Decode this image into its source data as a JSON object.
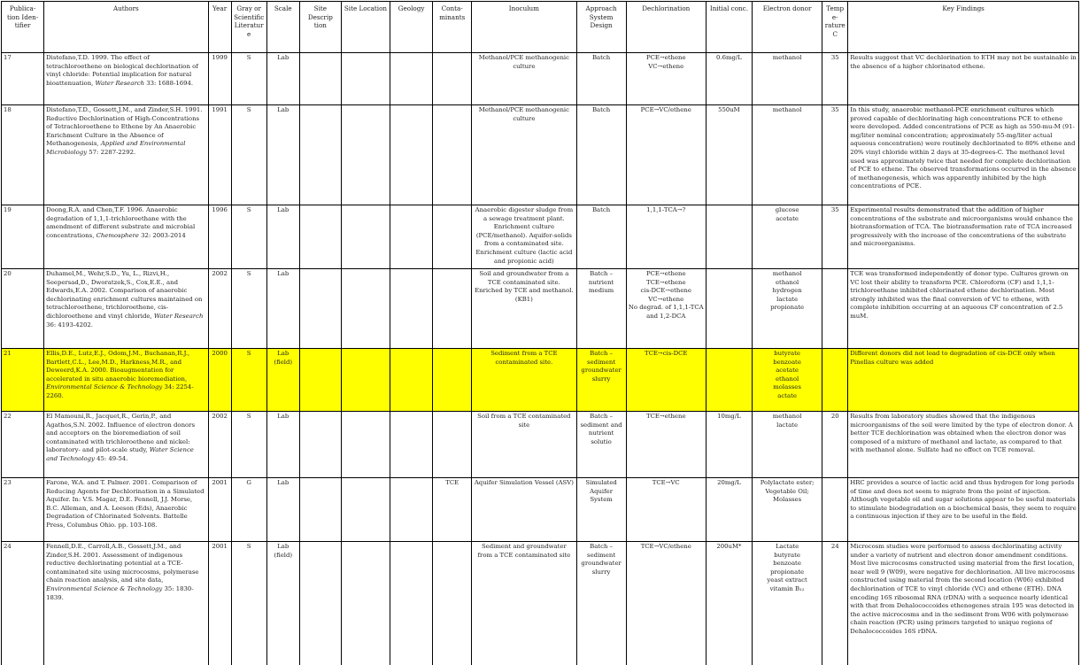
{
  "highlight_color": "#ffff00",
  "headers": [
    "Publica-tion Iden-tifier",
    "Authors",
    "Year",
    "Gray or Scientific Literature",
    "Scale",
    "Site Descrip tion",
    "Site Location",
    "Geology",
    "Conta-minants",
    "Inoculum",
    "Approach System Design",
    "Dechlorination",
    "Initial conc.",
    "Electron donor",
    "Tempe-rature C",
    "Key Findings"
  ],
  "rows": [
    {
      "id": "17",
      "authors": "Distefano,T.D. 1999. The effect of tetrachloroethene on biological dechlorination of vinyl chloride: Potential implication for natural bioattenuation,",
      "journal": "Water Research",
      "citation_tail": " 33: 1688-1694.",
      "year": "1999",
      "gray": "S",
      "scale": "Lab",
      "site_desc": "",
      "site_location": "",
      "geology": "",
      "contaminants": "",
      "inoculum": "Methanol/PCE methanogenic culture",
      "approach": "Batch",
      "dechlorination": [
        "PCE→ethene",
        "VC→ethene"
      ],
      "initial_conc": "0.6mg/L",
      "electron_donor": [
        "methanol"
      ],
      "temperature": "35",
      "findings": "Results suggest that VC dechlorination to ETH may not be sustainable in the absence of a higher chlorinated ethene.",
      "highlight": false
    },
    {
      "id": "18",
      "authors": "Distefano,T.D., Gossett,J.M., and Zinder,S.H. 1991. Reductive Dechlorination of High-Concentrations of Tetrachloroethene to Ethene by An Anaerobic Enrichment Culture in the Absence of Methanogenesis,",
      "journal": "Applied and Environmental Microbiology",
      "citation_tail": " 57: 2287-2292.",
      "year": "1991",
      "gray": "S",
      "scale": "Lab",
      "site_desc": "",
      "site_location": "",
      "geology": "",
      "contaminants": "",
      "inoculum": "Methanol/PCE methanogenic culture",
      "approach": "Batch",
      "dechlorination": [
        "PCE→VC/ethene"
      ],
      "initial_conc": "550uM",
      "electron_donor": [
        "methanol"
      ],
      "temperature": "35",
      "findings": "In this study, anaerobic methanol-PCE enrichment cultures which proved capable of dechlorinating high concentrations PCE to ethene were developed. Added concentrations of PCE as high as 550-mu-M (91-mg/liter nominal concentration; approximately 55-mg/liter actual aqueous concentration) were routinely dechlorinated to 80% ethene and 20% vinyl chloride within 2 days at 35-degrees-C. The methanol level used was approximately twice that needed for complete dechlorination of PCE to ethene. The observed transformations occurred in the absence of methanogenesis, which was apparently inhibited by the high concentrations of PCE.",
      "highlight": false
    },
    {
      "id": "19",
      "authors": "Doong,R.A. and Chen,T.F. 1996. Anaerobic degradation of 1,1,1-trichloroethane with the amendment of different substrate and microbial concentrations,",
      "journal": "Chemosphere",
      "citation_tail": " 32: 2003-2014",
      "year": "1996",
      "gray": "S",
      "scale": "Lab",
      "site_desc": "",
      "site_location": "",
      "geology": "",
      "contaminants": "",
      "inoculum": "Anaerobic digester sludge from a sewage treatment plant. Enrichment culture (PCE/methanol). Aquifer-solids from a contaminated site. Enrichment culture (lactic acid and propionic acid)",
      "approach": "Batch",
      "dechlorination": [
        "1,1,1-TCA→?"
      ],
      "initial_conc": "",
      "electron_donor": [
        "glucose",
        "acetate"
      ],
      "temperature": "35",
      "findings": "Experimental results demonstrated that the addition of higher concentrations of the substrate and microorganisms would enhance the biotransformation of TCA. The biotransformation rate of TCA increased progressively with the increase of the concentrations of the substrate and microorganisms.",
      "highlight": false
    },
    {
      "id": "20",
      "authors": "Duhamel,M., Wehr,S.D., Yu, L., Rizvi,H., Seepersad,D., Dworatzek,S., Cox,E.E., and Edwards,E.A. 2002. Comparison of anaerobic dechlorinating enrichment cultures maintained on tetrachloroethene, trichloroethene, cis-dichloroethene and vinyl chloride,",
      "journal": "Water Research",
      "citation_tail": " 36: 4193-4202.",
      "year": "2002",
      "gray": "S",
      "scale": "Lab",
      "site_desc": "",
      "site_location": "",
      "geology": "",
      "contaminants": "",
      "inoculum": "Soil and groundwater from a TCE contaminated site. Enriched by TCE and methanol. (KB1)",
      "approach": "Batch – nutrient medium",
      "dechlorination": [
        "PCE→ethene",
        "TCE→ethene",
        "cis-DCE→ethene",
        "VC→ethene",
        "No degrad. of 1,1,1-TCA and 1,2-DCA"
      ],
      "initial_conc": "",
      "electron_donor": [
        "methanol",
        "ethanol",
        "hydrogen",
        "lactate",
        "propionate"
      ],
      "temperature": "",
      "findings": "TCE was transformed independently of donor type. Cultures grown on VC lost their ability to transform PCE. Chloroform (CF) and 1,1,1-trichloroethane inhibited chlorinated ethene dechlorination. Most strongly inhibited was the final conversion of VC to ethene, with complete inhibition occurring at an aqueous CF concentration of 2.5 muM.",
      "highlight": false
    },
    {
      "id": "21",
      "authors": "Ellis,D.E., Lutz,E.J., Odom,J.M., Buchanan,R.J., Bartlett,C.L., Lee,M.D., Harkness,M.R., and Deweerd,K.A. 2000. Bioaugmentation for accelerated in situ anaerobic bioremediation,",
      "journal": "Environmental Science & Technology",
      "citation_tail": " 34: 2254-2260.",
      "year": "2000",
      "gray": "S",
      "scale": "Lab (field)",
      "site_desc": "",
      "site_location": "",
      "geology": "",
      "contaminants": "",
      "inoculum": "Sediment from a TCE contaminated site.",
      "approach": "Batch – sediment groundwater slurry",
      "dechlorination": [
        "TCE→cis-DCE"
      ],
      "initial_conc": "",
      "electron_donor": [
        "butyrate",
        "benzoate",
        "acetate",
        "ethanol",
        "molasses",
        "actate"
      ],
      "temperature": "",
      "findings": "Different donors did not lead to degradation of cis-DCE only when Pinellas culture was added",
      "highlight": true
    },
    {
      "id": "22",
      "authors": "El Mamouni,R., Jacquet,R., Gerin,P., and Agathos,S.N. 2002. Influence of electron donors and acceptors on the bioremediation of soil contaminated with trichloroethene and nickel: laboratory- and pilot-scale study,",
      "journal": "Water Science and Technology",
      "citation_tail": " 45: 49-54.",
      "year": "2002",
      "gray": "S",
      "scale": "Lab",
      "site_desc": "",
      "site_location": "",
      "geology": "",
      "contaminants": "",
      "inoculum": "Soil from a TCE contaminated site",
      "approach": "Batch – sediment and nutrient solutio",
      "dechlorination": [
        "TCE→ethene"
      ],
      "initial_conc": "10mg/L",
      "electron_donor": [
        "methanol",
        "lactate"
      ],
      "temperature": "20",
      "findings": "Results from laboratory studies showed that the indigenous microorganisms of the soil were limited by the type of electron donor. A better TCE dechlorination was obtained when the electron donor was composed of a mixture of methanol and lactate, as compared to that with methanol alone. Sulfate had no effect on TCE removal.",
      "highlight": false
    },
    {
      "id": "23",
      "authors": "Farone, W.A. and T. Palmer. 2001. Comparison of Reducing Agents for Dechlorination in a Simulated Aquifer. In: V.S. Magar, D.E. Fennell, J.J. Morse, B.C. Alleman, and A. Leeson (Eds), Anaerobic Degradation of Chlorinated Solvents. Battelle Press, Columbus Ohio. pp. 103-108.",
      "journal": "",
      "citation_tail": "",
      "year": "2001",
      "gray": "G",
      "scale": "Lab",
      "site_desc": "",
      "site_location": "",
      "geology": "",
      "contaminants": "TCE",
      "inoculum": "Aquifer Simulation Vessel (ASV)",
      "approach": "Simulated Aquifer System",
      "dechlorination": [
        "TCE→VC"
      ],
      "initial_conc": "20mg/L",
      "electron_donor": [
        "Polylactate ester;",
        "Vegetable Oil;",
        "Molasses"
      ],
      "temperature": "",
      "findings": "HRC provides a source of lactic acid and thus hydrogen for long periods of time and does not seem to migrate from the point of injection. Although vegetable oil and sugar solutions appear to be useful materials to stimulate biodegradation on a biochemical basis, they seem to require a continuous injection if they are to be useful in the field.",
      "highlight": false
    },
    {
      "id": "24",
      "authors": "Fennell,D.E., Carroll,A.B., Gossett,J.M., and Zinder,S.H. 2001. Assessment of indigenous reductive dechlorinating potential at a TCE-contaminated site using microcosms, polymerase chain reaction analysis, and site data,",
      "journal": "Environmental Science & Technology",
      "citation_tail": " 35: 1830-1839.",
      "year": "2001",
      "gray": "S",
      "scale": "Lab (field)",
      "site_desc": "",
      "site_location": "",
      "geology": "",
      "contaminants": "",
      "inoculum": "Sediment and groundwater from a TCE contaminated site",
      "approach": "Batch – sediment groundwater slurry",
      "dechlorination": [
        "TCE→VC/ethene"
      ],
      "initial_conc": "200uM*",
      "electron_donor": [
        "Lactate",
        "butyrate",
        "benzoate",
        "propionate",
        "yeast extract",
        "vitamin B₁₂"
      ],
      "temperature": "24",
      "findings": "Microcosm studies were performed to assess dechlorinating activity under a variety of nutrient and electron donor amendment conditions. Most live microcosms constructed using material from the first location, near well 9 (W09), were negative for dechlorination. All live microcosms constructed using material from the second location (W06) exhibited dechlorination of TCE to vinyl chloride (VC) and ethene (ETH). DNA encoding 16S ribosomal RNA (rDNA) with a sequence nearly identical with that from Dehalococcoides ethenogenes strain 195 was detected in the active microcosms and in the sediment from W06 with polymerase chain reaction (PCR) using primers targeted to unique regions of Dehalococcoides 16S rDNA.",
      "highlight": false
    }
  ]
}
